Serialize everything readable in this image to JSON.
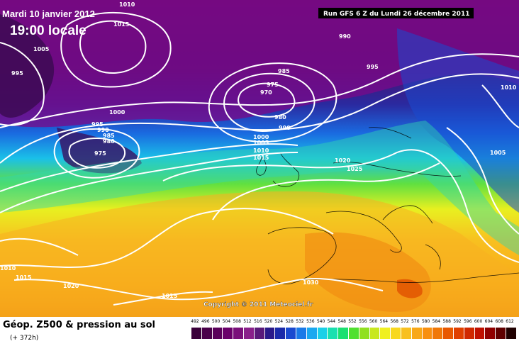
{
  "map": {
    "date_label": "Mardi 10 janvier 2012",
    "time_label": "19:00 locale",
    "run_label": "Run GFS 6 Z du Lundi 26 décembre 2011",
    "copyright": "Copyright © 2011 Meteociel.fr"
  },
  "isobar_labels": [
    "1010",
    "1015",
    "990",
    "1005",
    "995",
    "985",
    "975",
    "970",
    "995",
    "1010",
    "1000",
    "980",
    "990",
    "995",
    "990",
    "985",
    "980",
    "975",
    "1000",
    "1005",
    "1010",
    "1015",
    "1020",
    "1025",
    "1005",
    "1010",
    "1015",
    "1020",
    "1015",
    "1030"
  ],
  "legend": {
    "title": "Géop. Z500 & pression au sol",
    "subtitle": "(+ 372h)",
    "ticks": [
      "492",
      "496",
      "500",
      "504",
      "508",
      "512",
      "516",
      "520",
      "524",
      "528",
      "532",
      "536",
      "540",
      "544",
      "548",
      "552",
      "556",
      "560",
      "564",
      "568",
      "572",
      "576",
      "580",
      "584",
      "588",
      "592",
      "596",
      "600",
      "604",
      "608",
      "612"
    ],
    "colors": [
      "#3a003a",
      "#4a004a",
      "#5a005a",
      "#6a006a",
      "#7a107a",
      "#8a208a",
      "#5a1a7a",
      "#2a1a8a",
      "#1a2aaa",
      "#1a4ad0",
      "#1a7ae8",
      "#1aa8f0",
      "#1ad0e8",
      "#1ae0b0",
      "#1ae070",
      "#50e030",
      "#90e020",
      "#c8e820",
      "#f0f020",
      "#f8d820",
      "#f8c020",
      "#f8a818",
      "#f89010",
      "#f07808",
      "#e85800",
      "#e04000",
      "#d02800",
      "#c01000",
      "#900000",
      "#600000",
      "#200000"
    ]
  },
  "colors": {
    "isobar": "#ffffff",
    "title_text": "#ffffff",
    "run_banner": "#000000"
  }
}
